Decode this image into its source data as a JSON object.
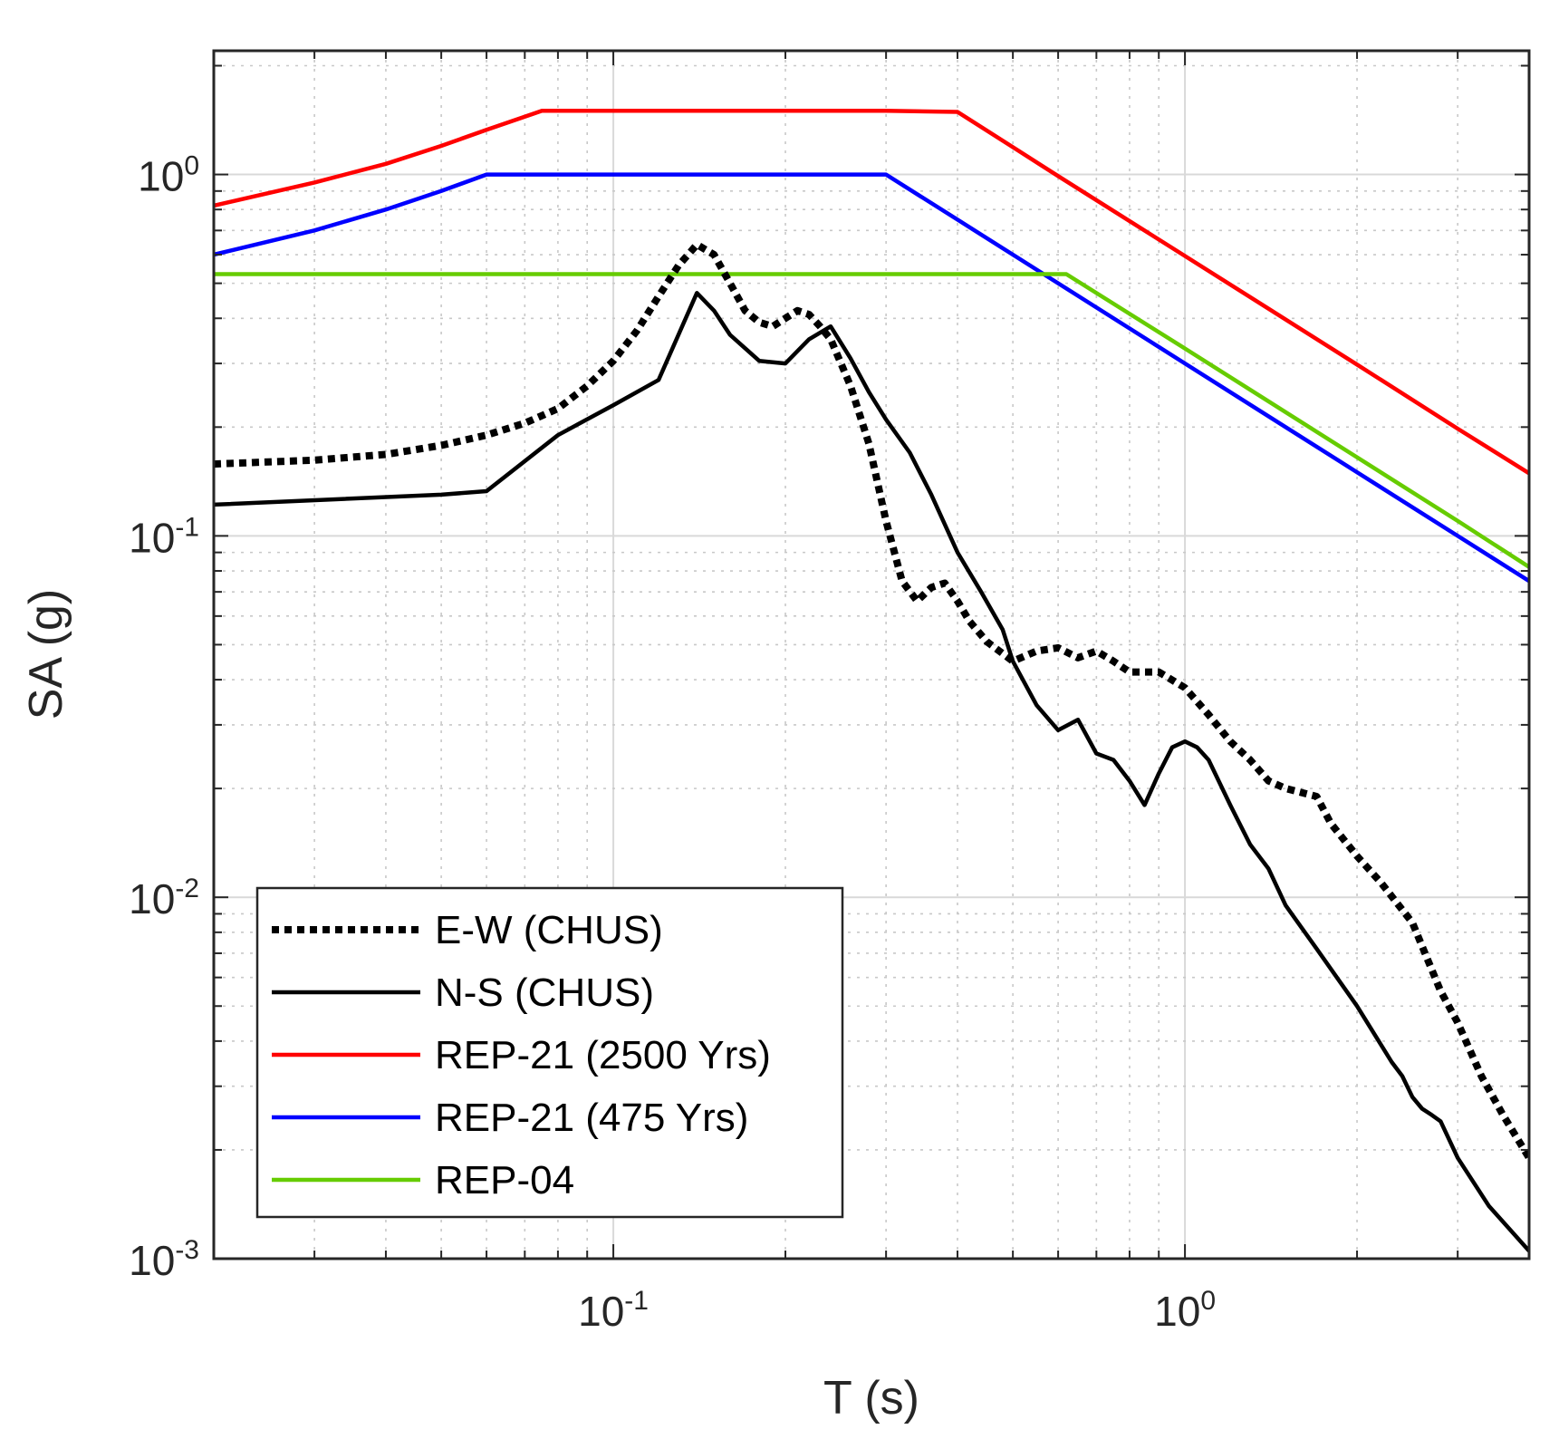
{
  "chart_data": {
    "type": "line",
    "title": "",
    "xlabel": "T (s)",
    "ylabel": "SA (g)",
    "xscale": "log",
    "yscale": "log",
    "xlim": [
      0.02,
      4.0
    ],
    "ylim": [
      0.001,
      2.2
    ],
    "grid": true,
    "legend_position": "bottom-left",
    "x_ticks": [
      {
        "value": 0.1,
        "base": "10",
        "exp": "-1"
      },
      {
        "value": 1,
        "base": "10",
        "exp": "0"
      }
    ],
    "y_ticks": [
      {
        "value": 0.001,
        "base": "10",
        "exp": "-3"
      },
      {
        "value": 0.01,
        "base": "10",
        "exp": "-2"
      },
      {
        "value": 0.1,
        "base": "10",
        "exp": "-1"
      },
      {
        "value": 1,
        "base": "10",
        "exp": "0"
      }
    ],
    "series": [
      {
        "name": "E-W (CHUS)",
        "color": "#000000",
        "style": "dotted",
        "x": [
          0.02,
          0.03,
          0.04,
          0.05,
          0.06,
          0.07,
          0.08,
          0.09,
          0.1,
          0.11,
          0.12,
          0.13,
          0.14,
          0.15,
          0.16,
          0.17,
          0.18,
          0.19,
          0.2,
          0.21,
          0.22,
          0.23,
          0.24,
          0.26,
          0.28,
          0.3,
          0.32,
          0.34,
          0.36,
          0.38,
          0.4,
          0.42,
          0.45,
          0.5,
          0.55,
          0.6,
          0.65,
          0.7,
          0.75,
          0.8,
          0.9,
          1.0,
          1.1,
          1.2,
          1.3,
          1.4,
          1.5,
          1.7,
          1.8,
          2.0,
          2.2,
          2.5,
          2.8,
          3.0,
          3.3,
          3.6,
          4.0
        ],
        "y": [
          0.158,
          0.162,
          0.168,
          0.178,
          0.19,
          0.205,
          0.225,
          0.26,
          0.305,
          0.37,
          0.46,
          0.56,
          0.64,
          0.6,
          0.5,
          0.42,
          0.39,
          0.38,
          0.4,
          0.42,
          0.41,
          0.38,
          0.35,
          0.26,
          0.18,
          0.11,
          0.075,
          0.066,
          0.072,
          0.074,
          0.066,
          0.058,
          0.051,
          0.045,
          0.048,
          0.049,
          0.046,
          0.048,
          0.045,
          0.042,
          0.042,
          0.038,
          0.032,
          0.027,
          0.024,
          0.021,
          0.02,
          0.019,
          0.016,
          0.013,
          0.011,
          0.0085,
          0.0055,
          0.0045,
          0.0032,
          0.0025,
          0.0019
        ]
      },
      {
        "name": "N-S (CHUS)",
        "color": "#000000",
        "style": "solid",
        "x": [
          0.02,
          0.05,
          0.06,
          0.08,
          0.1,
          0.12,
          0.14,
          0.15,
          0.16,
          0.18,
          0.2,
          0.22,
          0.24,
          0.26,
          0.28,
          0.3,
          0.33,
          0.36,
          0.4,
          0.44,
          0.48,
          0.5,
          0.55,
          0.6,
          0.65,
          0.7,
          0.75,
          0.8,
          0.85,
          0.9,
          0.95,
          1.0,
          1.05,
          1.1,
          1.2,
          1.3,
          1.4,
          1.5,
          1.7,
          2.0,
          2.3,
          2.4,
          2.5,
          2.6,
          2.7,
          2.8,
          3.0,
          3.4,
          4.0
        ],
        "y": [
          0.122,
          0.13,
          0.133,
          0.19,
          0.23,
          0.27,
          0.47,
          0.42,
          0.36,
          0.305,
          0.3,
          0.35,
          0.38,
          0.31,
          0.25,
          0.21,
          0.17,
          0.13,
          0.09,
          0.07,
          0.055,
          0.045,
          0.034,
          0.029,
          0.031,
          0.025,
          0.024,
          0.021,
          0.018,
          0.022,
          0.026,
          0.027,
          0.026,
          0.024,
          0.018,
          0.014,
          0.012,
          0.0095,
          0.0072,
          0.005,
          0.0035,
          0.0032,
          0.0028,
          0.0026,
          0.0025,
          0.0024,
          0.0019,
          0.0014,
          0.00105
        ]
      },
      {
        "name": "REP-21 (2500 Yrs)",
        "color": "#ff0000",
        "style": "solid",
        "x": [
          0.02,
          0.03,
          0.04,
          0.05,
          0.06,
          0.075,
          0.1,
          0.2,
          0.3,
          0.4,
          0.5,
          0.6,
          1.0,
          2.0,
          3.0,
          4.0
        ],
        "y": [
          0.82,
          0.95,
          1.07,
          1.2,
          1.33,
          1.5,
          1.5,
          1.5,
          1.5,
          1.49,
          1.19,
          0.99,
          0.595,
          0.298,
          0.198,
          0.149
        ]
      },
      {
        "name": "REP-21 (475 Yrs)",
        "color": "#0000ff",
        "style": "solid",
        "x": [
          0.02,
          0.03,
          0.04,
          0.05,
          0.06,
          0.1,
          0.2,
          0.3,
          0.4,
          0.6,
          1.0,
          2.0,
          3.0,
          4.0
        ],
        "y": [
          0.6,
          0.7,
          0.8,
          0.9,
          1.0,
          1.0,
          1.0,
          1.0,
          0.75,
          0.5,
          0.3,
          0.15,
          0.1,
          0.075
        ]
      },
      {
        "name": "REP-04",
        "color": "#66cc00",
        "style": "solid",
        "x": [
          0.02,
          0.1,
          0.3,
          0.6,
          0.62,
          1.0,
          2.0,
          3.0,
          4.0
        ],
        "y": [
          0.53,
          0.53,
          0.53,
          0.53,
          0.53,
          0.33,
          0.165,
          0.11,
          0.082
        ]
      }
    ]
  }
}
